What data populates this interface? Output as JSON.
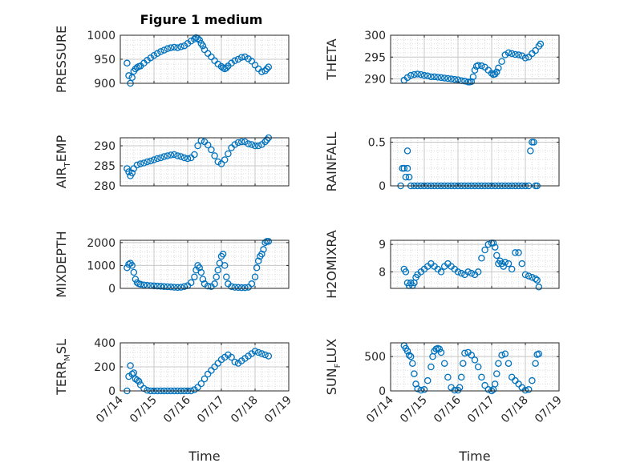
{
  "chart_data": {
    "type": "scatter",
    "title": "Figure 1 medium",
    "marker_color": "#0072BD",
    "x_tick_labels": [
      "07/14",
      "07/15",
      "07/16",
      "07/17",
      "07/18",
      "07/19"
    ],
    "xlabel": "Time",
    "panels": [
      {
        "name": "pressure",
        "ylabel": "PRESSURE",
        "ylim": [
          900,
          1000
        ],
        "yticks": [
          "900",
          "950",
          "1000"
        ],
        "ytick_values": [
          900,
          950,
          1000
        ],
        "x": [
          14.2,
          14.25,
          14.3,
          14.35,
          14.4,
          14.45,
          14.5,
          14.55,
          14.6,
          14.7,
          14.8,
          14.9,
          15.0,
          15.1,
          15.2,
          15.3,
          15.4,
          15.5,
          15.6,
          15.7,
          15.8,
          15.9,
          16.0,
          16.1,
          16.2,
          16.25,
          16.3,
          16.35,
          16.4,
          16.45,
          16.5,
          16.6,
          16.7,
          16.8,
          16.9,
          17.0,
          17.05,
          17.1,
          17.15,
          17.2,
          17.3,
          17.4,
          17.5,
          17.6,
          17.7,
          17.8,
          17.9,
          18.0,
          18.1,
          18.2,
          18.3,
          18.35,
          18.4
        ],
        "y": [
          942,
          916,
          900,
          912,
          925,
          930,
          933,
          935,
          936,
          942,
          948,
          953,
          958,
          962,
          966,
          969,
          972,
          974,
          975,
          974,
          976,
          978,
          983,
          988,
          992,
          995,
          993,
          990,
          983,
          978,
          970,
          962,
          955,
          947,
          940,
          935,
          932,
          930,
          932,
          936,
          942,
          947,
          950,
          954,
          955,
          951,
          946,
          938,
          930,
          924,
          926,
          930,
          934
        ]
      },
      {
        "name": "theta",
        "ylabel": "THETA",
        "ylim": [
          289,
          300
        ],
        "yticks": [
          "290",
          "295",
          "300"
        ],
        "ytick_values": [
          290,
          295,
          300
        ],
        "x": [
          14.4,
          14.5,
          14.6,
          14.7,
          14.8,
          14.9,
          15.0,
          15.1,
          15.2,
          15.3,
          15.4,
          15.5,
          15.6,
          15.7,
          15.8,
          15.9,
          16.0,
          16.1,
          16.2,
          16.3,
          16.35,
          16.4,
          16.45,
          16.5,
          16.55,
          16.6,
          16.7,
          16.8,
          16.9,
          17.0,
          17.05,
          17.1,
          17.15,
          17.2,
          17.3,
          17.4,
          17.5,
          17.6,
          17.7,
          17.8,
          17.9,
          18.0,
          18.1,
          18.2,
          18.3,
          18.4,
          18.45
        ],
        "y": [
          289.7,
          290.3,
          290.8,
          291.0,
          291.1,
          291.0,
          290.8,
          290.7,
          290.5,
          290.5,
          290.4,
          290.3,
          290.2,
          290.1,
          290.0,
          289.9,
          289.8,
          289.6,
          289.5,
          289.3,
          289.3,
          289.4,
          290.5,
          292.0,
          292.9,
          293.1,
          293.0,
          292.7,
          292.0,
          291.3,
          291.0,
          291.1,
          291.6,
          292.5,
          294.0,
          295.5,
          296.0,
          295.8,
          295.6,
          295.5,
          295.3,
          294.8,
          295.0,
          295.8,
          296.5,
          297.5,
          298.0
        ]
      },
      {
        "name": "air_temp",
        "ylabel": "AIR_TEMP",
        "ylabel_parts": [
          "AIR",
          "T",
          "EMP"
        ],
        "ylim": [
          280,
          292
        ],
        "yticks": [
          "280",
          "285",
          "290"
        ],
        "ytick_values": [
          280,
          285,
          290
        ],
        "x": [
          14.2,
          14.25,
          14.3,
          14.35,
          14.4,
          14.5,
          14.6,
          14.7,
          14.8,
          14.9,
          15.0,
          15.1,
          15.2,
          15.3,
          15.4,
          15.5,
          15.6,
          15.7,
          15.8,
          15.9,
          16.0,
          16.1,
          16.2,
          16.3,
          16.4,
          16.5,
          16.6,
          16.7,
          16.8,
          16.9,
          17.0,
          17.1,
          17.2,
          17.3,
          17.4,
          17.5,
          17.6,
          17.7,
          17.8,
          17.9,
          18.0,
          18.1,
          18.2,
          18.3,
          18.35,
          18.4
        ],
        "y": [
          284.3,
          283.5,
          282.5,
          283.2,
          284.3,
          285.2,
          285.5,
          285.7,
          286.0,
          286.2,
          286.5,
          286.8,
          287.0,
          287.3,
          287.5,
          287.7,
          287.8,
          287.5,
          287.3,
          287.0,
          286.8,
          287.0,
          287.8,
          290.0,
          291.3,
          291.0,
          290.2,
          289.0,
          287.5,
          286.0,
          285.5,
          286.5,
          288.0,
          289.5,
          290.3,
          290.8,
          291.0,
          291.0,
          290.5,
          290.3,
          290.0,
          290.0,
          290.3,
          291.0,
          291.5,
          292.0
        ]
      },
      {
        "name": "rainfall",
        "ylabel": "RAINFALL",
        "ylim": [
          0,
          0.55
        ],
        "yticks": [
          "0",
          "0.5"
        ],
        "ytick_values": [
          0,
          0.5
        ],
        "x": [
          14.3,
          14.35,
          14.4,
          14.45,
          14.5,
          14.5,
          14.55,
          14.6,
          14.7,
          14.8,
          14.9,
          15.0,
          15.1,
          15.2,
          15.3,
          15.4,
          15.5,
          15.6,
          15.7,
          15.8,
          15.9,
          16.0,
          16.1,
          16.2,
          16.3,
          16.4,
          16.5,
          16.6,
          16.7,
          16.8,
          16.9,
          17.0,
          17.1,
          17.2,
          17.3,
          17.4,
          17.5,
          17.6,
          17.7,
          17.8,
          17.9,
          18.0,
          18.1,
          18.15,
          18.2,
          18.25,
          18.3,
          18.35
        ],
        "y": [
          0.0,
          0.2,
          0.2,
          0.1,
          0.4,
          0.2,
          0.1,
          0.0,
          0.0,
          0.0,
          0.0,
          0.0,
          0.0,
          0.0,
          0.0,
          0.0,
          0.0,
          0.0,
          0.0,
          0.0,
          0.0,
          0.0,
          0.0,
          0.0,
          0.0,
          0.0,
          0.0,
          0.0,
          0.0,
          0.0,
          0.0,
          0.0,
          0.0,
          0.0,
          0.0,
          0.0,
          0.0,
          0.0,
          0.0,
          0.0,
          0.0,
          0.0,
          0.0,
          0.4,
          0.5,
          0.5,
          0.0,
          0.0
        ]
      },
      {
        "name": "mixdepth",
        "ylabel": "MIXDEPTH",
        "ylim": [
          0,
          2100
        ],
        "yticks": [
          "0",
          "1000",
          "2000"
        ],
        "ytick_values": [
          0,
          1000,
          2000
        ],
        "x": [
          14.2,
          14.25,
          14.3,
          14.35,
          14.4,
          14.45,
          14.5,
          14.55,
          14.6,
          14.7,
          14.8,
          14.9,
          15.0,
          15.1,
          15.2,
          15.3,
          15.4,
          15.5,
          15.6,
          15.7,
          15.8,
          15.9,
          16.0,
          16.1,
          16.2,
          16.25,
          16.3,
          16.35,
          16.4,
          16.45,
          16.5,
          16.6,
          16.7,
          16.8,
          16.85,
          16.9,
          16.95,
          17.0,
          17.05,
          17.1,
          17.15,
          17.2,
          17.3,
          17.4,
          17.5,
          17.6,
          17.7,
          17.8,
          17.9,
          18.0,
          18.05,
          18.1,
          18.15,
          18.2,
          18.25,
          18.3,
          18.35,
          18.4
        ],
        "y": [
          900,
          1050,
          1100,
          1000,
          700,
          400,
          250,
          200,
          180,
          150,
          130,
          120,
          110,
          100,
          90,
          80,
          70,
          60,
          50,
          40,
          50,
          80,
          120,
          250,
          500,
          800,
          1000,
          900,
          700,
          400,
          200,
          100,
          80,
          200,
          500,
          800,
          1100,
          1400,
          1500,
          1000,
          500,
          200,
          80,
          50,
          40,
          30,
          30,
          50,
          200,
          500,
          900,
          1200,
          1400,
          1500,
          1700,
          2000,
          2050,
          2050
        ]
      },
      {
        "name": "h2omixra",
        "ylabel": "H2OMIXRA",
        "ylim": [
          7.4,
          9.15
        ],
        "yticks": [
          "8",
          "9"
        ],
        "ytick_values": [
          8,
          9
        ],
        "x": [
          14.4,
          14.45,
          14.5,
          14.55,
          14.6,
          14.65,
          14.7,
          14.75,
          14.8,
          14.9,
          15.0,
          15.1,
          15.2,
          15.3,
          15.4,
          15.5,
          15.6,
          15.7,
          15.8,
          15.9,
          16.0,
          16.1,
          16.2,
          16.3,
          16.4,
          16.5,
          16.6,
          16.7,
          16.8,
          16.9,
          17.0,
          17.05,
          17.1,
          17.15,
          17.2,
          17.25,
          17.3,
          17.35,
          17.4,
          17.5,
          17.6,
          17.7,
          17.8,
          17.9,
          18.0,
          18.1,
          18.2,
          18.3,
          18.35,
          18.4
        ],
        "y": [
          8.1,
          8.0,
          7.6,
          7.5,
          7.6,
          7.5,
          7.6,
          7.8,
          7.9,
          8.0,
          8.1,
          8.2,
          8.3,
          8.2,
          8.1,
          8.0,
          8.2,
          8.3,
          8.2,
          8.1,
          8.0,
          7.95,
          7.9,
          8.0,
          7.95,
          7.9,
          8.0,
          8.5,
          8.8,
          9.0,
          9.05,
          9.05,
          8.9,
          8.6,
          8.3,
          8.4,
          8.3,
          8.2,
          8.35,
          8.3,
          8.1,
          8.7,
          8.7,
          8.3,
          7.9,
          7.85,
          7.8,
          7.75,
          7.7,
          7.45
        ]
      },
      {
        "name": "terr_msl",
        "ylabel": "TERR_MSL",
        "ylabel_parts": [
          "TERR",
          "M",
          "SL"
        ],
        "ylim": [
          0,
          400
        ],
        "yticks": [
          "0",
          "200",
          "400"
        ],
        "ytick_values": [
          0,
          200,
          400
        ],
        "x": [
          14.2,
          14.25,
          14.3,
          14.35,
          14.4,
          14.45,
          14.5,
          14.55,
          14.6,
          14.7,
          14.8,
          14.9,
          15.0,
          15.1,
          15.2,
          15.3,
          15.4,
          15.5,
          15.6,
          15.7,
          15.8,
          15.9,
          16.0,
          16.1,
          16.2,
          16.3,
          16.4,
          16.5,
          16.6,
          16.7,
          16.8,
          16.9,
          17.0,
          17.1,
          17.2,
          17.3,
          17.4,
          17.5,
          17.6,
          17.7,
          17.8,
          17.9,
          18.0,
          18.1,
          18.2,
          18.3,
          18.4
        ],
        "y": [
          0,
          120,
          210,
          140,
          150,
          100,
          90,
          80,
          50,
          20,
          5,
          0,
          0,
          0,
          0,
          0,
          0,
          0,
          0,
          0,
          0,
          0,
          0,
          0,
          10,
          30,
          60,
          100,
          140,
          170,
          200,
          230,
          260,
          280,
          300,
          280,
          240,
          230,
          250,
          270,
          290,
          310,
          330,
          320,
          310,
          300,
          290
        ]
      },
      {
        "name": "sun_flux",
        "ylabel": "SUN_FLUX",
        "ylabel_parts": [
          "SUN",
          "F",
          "LUX"
        ],
        "ylim": [
          0,
          700
        ],
        "yticks": [
          "0",
          "500"
        ],
        "ytick_values": [
          0,
          500
        ],
        "x": [
          14.4,
          14.45,
          14.5,
          14.55,
          14.6,
          14.65,
          14.7,
          14.75,
          14.8,
          14.9,
          15.0,
          15.1,
          15.2,
          15.25,
          15.3,
          15.35,
          15.4,
          15.45,
          15.5,
          15.6,
          15.7,
          15.8,
          15.9,
          16.0,
          16.05,
          16.1,
          16.15,
          16.2,
          16.3,
          16.4,
          16.5,
          16.6,
          16.7,
          16.8,
          16.9,
          17.0,
          17.05,
          17.1,
          17.15,
          17.2,
          17.3,
          17.4,
          17.5,
          17.6,
          17.7,
          17.8,
          17.9,
          18.0,
          18.1,
          18.2,
          18.3,
          18.35,
          18.4
        ],
        "y": [
          660,
          620,
          580,
          520,
          500,
          400,
          250,
          100,
          30,
          10,
          20,
          150,
          350,
          500,
          580,
          610,
          620,
          610,
          560,
          400,
          200,
          50,
          10,
          10,
          50,
          200,
          400,
          550,
          560,
          520,
          450,
          350,
          200,
          80,
          20,
          0,
          20,
          100,
          250,
          400,
          520,
          540,
          400,
          200,
          150,
          100,
          50,
          10,
          20,
          150,
          400,
          530,
          540
        ]
      }
    ]
  }
}
